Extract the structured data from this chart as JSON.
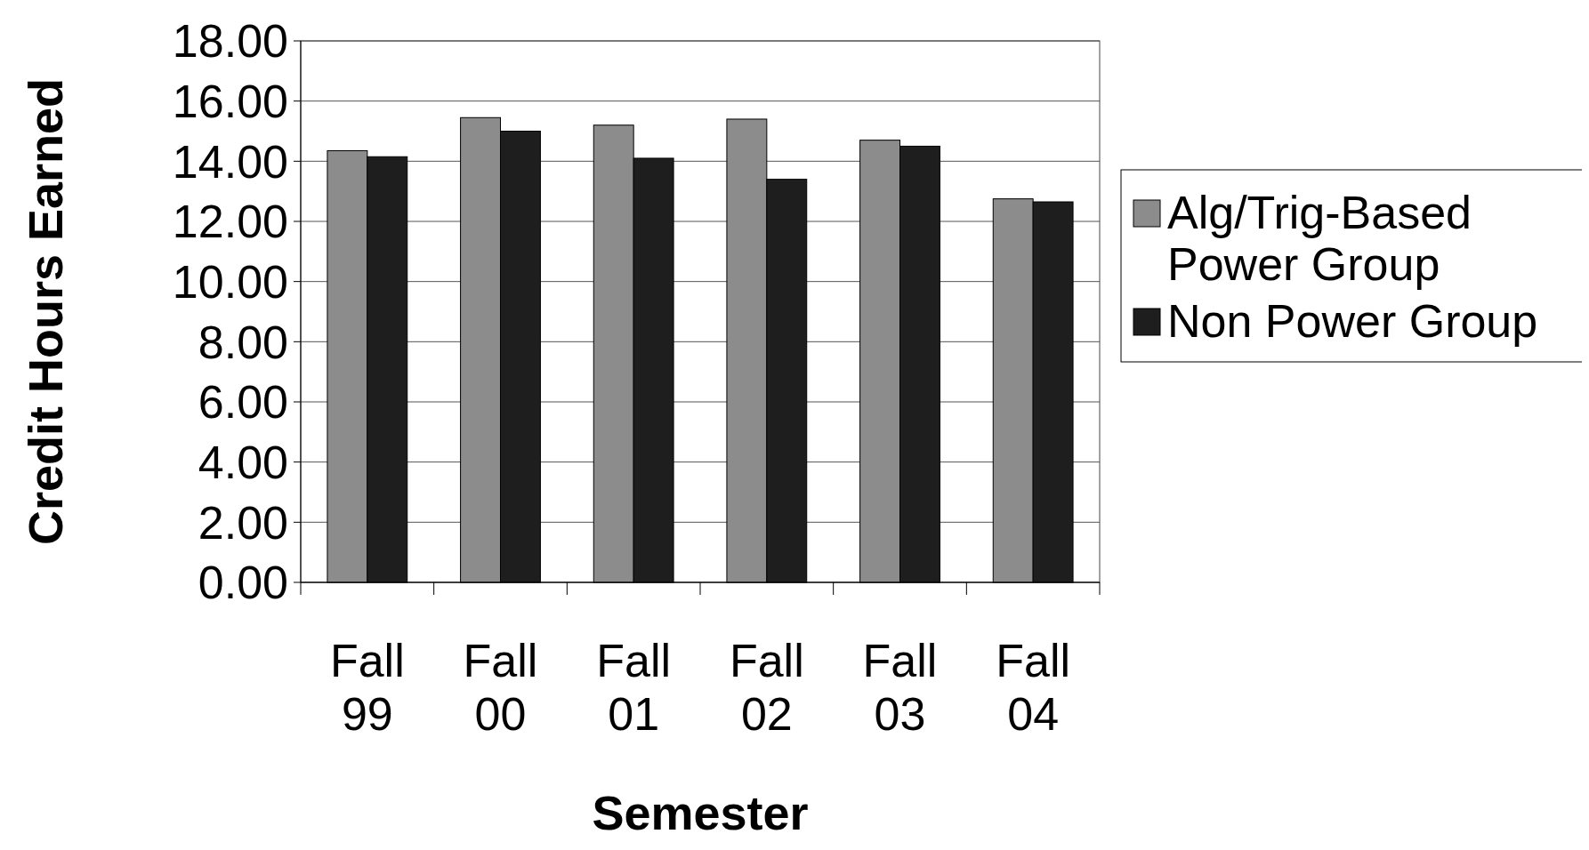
{
  "chart_data": {
    "type": "bar",
    "xlabel": "Semester",
    "ylabel": "Credit Hours Earned",
    "categories": [
      "Fall 99",
      "Fall 00",
      "Fall 01",
      "Fall 02",
      "Fall 03",
      "Fall 04"
    ],
    "series": [
      {
        "name": "Alg/Trig-Based Power Group",
        "color": "#8c8c8c",
        "values": [
          14.35,
          15.45,
          15.2,
          15.4,
          14.7,
          12.75
        ]
      },
      {
        "name": "Non Power Group",
        "color": "#1e1e1e",
        "values": [
          14.15,
          15.0,
          14.1,
          13.4,
          14.5,
          12.65
        ]
      }
    ],
    "ylim": [
      0,
      18
    ],
    "yticks": [
      {
        "value": 0,
        "label": "0.00"
      },
      {
        "value": 2,
        "label": "2.00"
      },
      {
        "value": 4,
        "label": "4.00"
      },
      {
        "value": 6,
        "label": "6.00"
      },
      {
        "value": 8,
        "label": "8.00"
      },
      {
        "value": 10,
        "label": "10.00"
      },
      {
        "value": 12,
        "label": "12.00"
      },
      {
        "value": 14,
        "label": "14.00"
      },
      {
        "value": 16,
        "label": "16.00"
      },
      {
        "value": 18,
        "label": "18.00"
      }
    ],
    "grid": "y",
    "legend": "right"
  }
}
